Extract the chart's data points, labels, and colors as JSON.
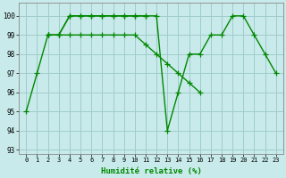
{
  "line_a": [
    [
      0,
      95
    ],
    [
      1,
      97
    ],
    [
      2,
      99
    ],
    [
      3,
      99
    ],
    [
      4,
      100
    ],
    [
      5,
      100
    ],
    [
      6,
      100
    ],
    [
      7,
      100
    ],
    [
      8,
      100
    ],
    [
      9,
      100
    ],
    [
      10,
      100
    ],
    [
      11,
      100
    ],
    [
      12,
      100
    ],
    [
      13,
      94
    ],
    [
      14,
      96
    ],
    [
      15,
      98
    ],
    [
      16,
      98
    ],
    [
      17,
      99
    ],
    [
      18,
      99
    ],
    [
      19,
      100
    ],
    [
      20,
      100
    ],
    [
      21,
      99
    ],
    [
      22,
      98
    ],
    [
      23,
      97
    ]
  ],
  "line_b": [
    [
      2,
      99
    ],
    [
      3,
      99
    ],
    [
      4,
      99
    ],
    [
      5,
      99
    ],
    [
      6,
      99
    ],
    [
      7,
      99
    ],
    [
      8,
      99
    ],
    [
      9,
      99
    ],
    [
      10,
      99
    ],
    [
      11,
      98.5
    ],
    [
      12,
      98
    ],
    [
      13,
      97.5
    ],
    [
      14,
      97
    ],
    [
      15,
      96.5
    ],
    [
      16,
      96
    ]
  ],
  "line_c": [
    [
      2,
      99
    ],
    [
      3,
      99
    ],
    [
      4,
      100
    ],
    [
      5,
      100
    ],
    [
      6,
      100
    ],
    [
      7,
      100
    ],
    [
      8,
      100
    ],
    [
      9,
      100
    ],
    [
      10,
      100
    ],
    [
      11,
      100
    ]
  ],
  "ylim": [
    92.8,
    100.7
  ],
  "yticks": [
    93,
    94,
    95,
    96,
    97,
    98,
    99,
    100
  ],
  "xticks": [
    0,
    1,
    2,
    3,
    4,
    5,
    6,
    7,
    8,
    9,
    10,
    11,
    12,
    13,
    14,
    15,
    16,
    17,
    18,
    19,
    20,
    21,
    22,
    23
  ],
  "xlabel": "Humidité relative (%)",
  "line_color": "#008800",
  "bg_color": "#c8eaea",
  "grid_color": "#a0cccc",
  "marker": "+",
  "marker_size": 4,
  "linewidth": 1.0,
  "figsize": [
    3.2,
    2.0
  ],
  "dpi": 100
}
